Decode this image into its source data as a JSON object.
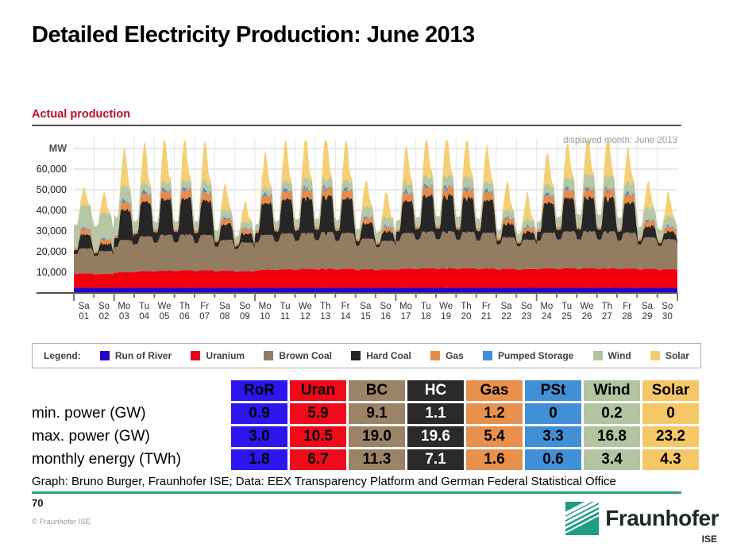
{
  "slide": {
    "title": "Detailed Electricity Production: June 2013",
    "section_label": "Actual production",
    "caption": "Graph: Bruno Burger, Fraunhofer ISE; Data: EEX Transparency Platform and German Federal Statistical Office",
    "page_number": "70",
    "copyright": "© Fraunhofer ISE",
    "logo_text": "Fraunhofer",
    "logo_sub": "ISE",
    "accent_green": "#2e9e85",
    "heading_red": "#c00d20"
  },
  "chart_data": {
    "type": "area",
    "stacked": true,
    "unit_label": "MW",
    "displayed_month_label": "displayed month: June 2013",
    "ylim": [
      0,
      75000
    ],
    "grid": true,
    "y_ticks": [
      {
        "value": 10000,
        "label": "10,000"
      },
      {
        "value": 20000,
        "label": "20,000"
      },
      {
        "value": 30000,
        "label": "30,000"
      },
      {
        "value": 40000,
        "label": "40,000"
      },
      {
        "value": 50000,
        "label": "50,000"
      },
      {
        "value": 60000,
        "label": "60,000"
      }
    ],
    "x_days": [
      {
        "dow": "Sa",
        "num": "01"
      },
      {
        "dow": "So",
        "num": "02"
      },
      {
        "dow": "Mo",
        "num": "03"
      },
      {
        "dow": "Tu",
        "num": "04"
      },
      {
        "dow": "We",
        "num": "05"
      },
      {
        "dow": "Th",
        "num": "06"
      },
      {
        "dow": "Fr",
        "num": "07"
      },
      {
        "dow": "Sa",
        "num": "08"
      },
      {
        "dow": "So",
        "num": "09"
      },
      {
        "dow": "Mo",
        "num": "10"
      },
      {
        "dow": "Tu",
        "num": "11"
      },
      {
        "dow": "We",
        "num": "12"
      },
      {
        "dow": "Th",
        "num": "13"
      },
      {
        "dow": "Fr",
        "num": "14"
      },
      {
        "dow": "Sa",
        "num": "15"
      },
      {
        "dow": "So",
        "num": "16"
      },
      {
        "dow": "Mo",
        "num": "17"
      },
      {
        "dow": "Tu",
        "num": "18"
      },
      {
        "dow": "We",
        "num": "19"
      },
      {
        "dow": "Th",
        "num": "20"
      },
      {
        "dow": "Fr",
        "num": "21"
      },
      {
        "dow": "Sa",
        "num": "22"
      },
      {
        "dow": "So",
        "num": "23"
      },
      {
        "dow": "Mo",
        "num": "24"
      },
      {
        "dow": "Tu",
        "num": "25"
      },
      {
        "dow": "We",
        "num": "26"
      },
      {
        "dow": "Th",
        "num": "27"
      },
      {
        "dow": "Fr",
        "num": "28"
      },
      {
        "dow": "Sa",
        "num": "29"
      },
      {
        "dow": "So",
        "num": "30"
      }
    ],
    "series": [
      {
        "id": "ror",
        "name": "Run of River",
        "color": "#2403ce",
        "profile": "flat",
        "daily_gw": [
          2.5,
          2.5,
          2.5,
          2.5,
          2.5,
          2.5,
          2.5,
          2.5,
          2.5,
          2.5,
          2.5,
          2.5,
          2.5,
          2.5,
          2.5,
          2.5,
          2.5,
          2.5,
          2.5,
          2.5,
          2.5,
          2.5,
          2.5,
          2.5,
          2.5,
          2.5,
          2.5,
          2.5,
          2.5,
          2.5
        ]
      },
      {
        "id": "uran",
        "name": "Uranium",
        "color": "#f2000e",
        "profile": "base",
        "daily_gw": [
          7.0,
          6.8,
          7.6,
          8.1,
          8.4,
          8.5,
          8.5,
          8.3,
          8.1,
          8.8,
          9.0,
          9.2,
          9.3,
          9.2,
          9.0,
          8.9,
          9.3,
          9.5,
          9.5,
          9.5,
          9.4,
          9.2,
          9.1,
          9.4,
          9.5,
          9.5,
          9.5,
          9.4,
          9.2,
          9.0
        ]
      },
      {
        "id": "bc",
        "name": "Brown Coal",
        "color": "#937c60",
        "profile": "base",
        "daily_gw": [
          12.0,
          11.0,
          15.5,
          16.8,
          17.2,
          17.3,
          17.0,
          14.8,
          13.8,
          16.8,
          17.3,
          17.4,
          17.6,
          17.3,
          14.8,
          13.8,
          17.2,
          17.8,
          17.8,
          17.6,
          17.3,
          15.2,
          14.2,
          17.2,
          17.8,
          17.8,
          17.8,
          17.3,
          15.2,
          14.5
        ]
      },
      {
        "id": "hc",
        "name": "Hard Coal",
        "color": "#262626",
        "profile": "diurnal",
        "daily_gw": [
          6.5,
          3.5,
          14.5,
          16.5,
          17.5,
          17.5,
          16.5,
          7.5,
          4.5,
          15.5,
          16.5,
          17.0,
          17.5,
          16.5,
          7.5,
          4.5,
          15.5,
          17.5,
          17.5,
          16.5,
          15.5,
          6.5,
          3.5,
          14.5,
          16.0,
          16.5,
          16.5,
          14.5,
          5.5,
          3.5
        ]
      },
      {
        "id": "gas",
        "name": "Gas",
        "color": "#e88b4a",
        "profile": "diurnal",
        "daily_gw": [
          2.6,
          2.2,
          3.6,
          3.9,
          4.0,
          4.0,
          3.9,
          2.6,
          2.2,
          3.6,
          3.9,
          4.0,
          4.0,
          3.9,
          2.6,
          2.2,
          3.8,
          4.2,
          4.2,
          4.0,
          3.9,
          2.6,
          2.2,
          3.6,
          3.9,
          4.0,
          4.0,
          3.9,
          2.6,
          2.2
        ]
      },
      {
        "id": "pst",
        "name": "Pumped Storage",
        "color": "#3e8ed9",
        "profile": "peaks",
        "daily_gw": [
          1.0,
          0.9,
          1.6,
          1.7,
          1.8,
          1.8,
          1.7,
          1.0,
          0.9,
          1.6,
          1.7,
          1.8,
          1.8,
          1.7,
          1.0,
          0.9,
          1.7,
          1.9,
          1.9,
          1.8,
          1.7,
          1.0,
          0.9,
          1.6,
          1.7,
          1.8,
          1.8,
          1.7,
          1.0,
          0.9
        ]
      },
      {
        "id": "wind",
        "name": "Wind",
        "color": "#b5c7a4",
        "profile": "wind",
        "daily_gw": [
          11.0,
          12.5,
          7.0,
          4.0,
          3.5,
          3.8,
          4.5,
          4.0,
          3.0,
          3.2,
          4.0,
          4.5,
          4.0,
          3.8,
          5.0,
          4.2,
          4.0,
          4.5,
          5.0,
          5.5,
          4.0,
          3.8,
          3.4,
          4.0,
          5.0,
          6.5,
          6.0,
          5.0,
          6.0,
          4.5
        ]
      },
      {
        "id": "solar",
        "name": "Solar",
        "color": "#f5cf74",
        "profile": "solar",
        "daily_gw": [
          8.5,
          10.0,
          18.5,
          19.5,
          21.0,
          20.0,
          19.0,
          12.5,
          10.0,
          16.5,
          19.5,
          19.5,
          21.5,
          19.5,
          12.5,
          12.5,
          17.5,
          18.5,
          19.5,
          18.5,
          17.5,
          13.5,
          12.5,
          15.5,
          16.5,
          17.5,
          19.5,
          16.5,
          12.5,
          11.5
        ]
      }
    ]
  },
  "legend": {
    "label": "Legend:",
    "items": [
      {
        "label": "Run of River",
        "color": "#2403ce"
      },
      {
        "label": "Uranium",
        "color": "#e8001c"
      },
      {
        "label": "Brown Coal",
        "color": "#937c60"
      },
      {
        "label": "Hard Coal",
        "color": "#262626"
      },
      {
        "label": "Gas",
        "color": "#e88b4a"
      },
      {
        "label": "Pumped Storage",
        "color": "#3e8ed9"
      },
      {
        "label": "Wind",
        "color": "#aec49e"
      },
      {
        "label": "Solar",
        "color": "#f2ce6e"
      }
    ]
  },
  "table": {
    "columns": [
      {
        "label": "RoR",
        "color": "#2b16f0",
        "text": "#000000"
      },
      {
        "label": "Uran",
        "color": "#ee0a18",
        "text": "#000000"
      },
      {
        "label": "BC",
        "color": "#9b8367",
        "text": "#000000"
      },
      {
        "label": "HC",
        "color": "#2b2a28",
        "text": "#ffffff"
      },
      {
        "label": "Gas",
        "color": "#e8914e",
        "text": "#000000"
      },
      {
        "label": "PSt",
        "color": "#4190d6",
        "text": "#000000"
      },
      {
        "label": "Wind",
        "color": "#b2c4a0",
        "text": "#000000"
      },
      {
        "label": "Solar",
        "color": "#f6c767",
        "text": "#000000"
      }
    ],
    "rows": [
      {
        "label": "min. power (GW)",
        "values": [
          "0.9",
          "5.9",
          "9.1",
          "1.1",
          "1.2",
          "0",
          "0.2",
          "0"
        ]
      },
      {
        "label": "max. power (GW)",
        "values": [
          "3.0",
          "10.5",
          "19.0",
          "19.6",
          "5.4",
          "3.3",
          "16.8",
          "23.2"
        ]
      },
      {
        "label": "monthly energy (TWh)",
        "values": [
          "1.8",
          "6.7",
          "11.3",
          "7.1",
          "1.6",
          "0.6",
          "3.4",
          "4.3"
        ]
      }
    ]
  }
}
